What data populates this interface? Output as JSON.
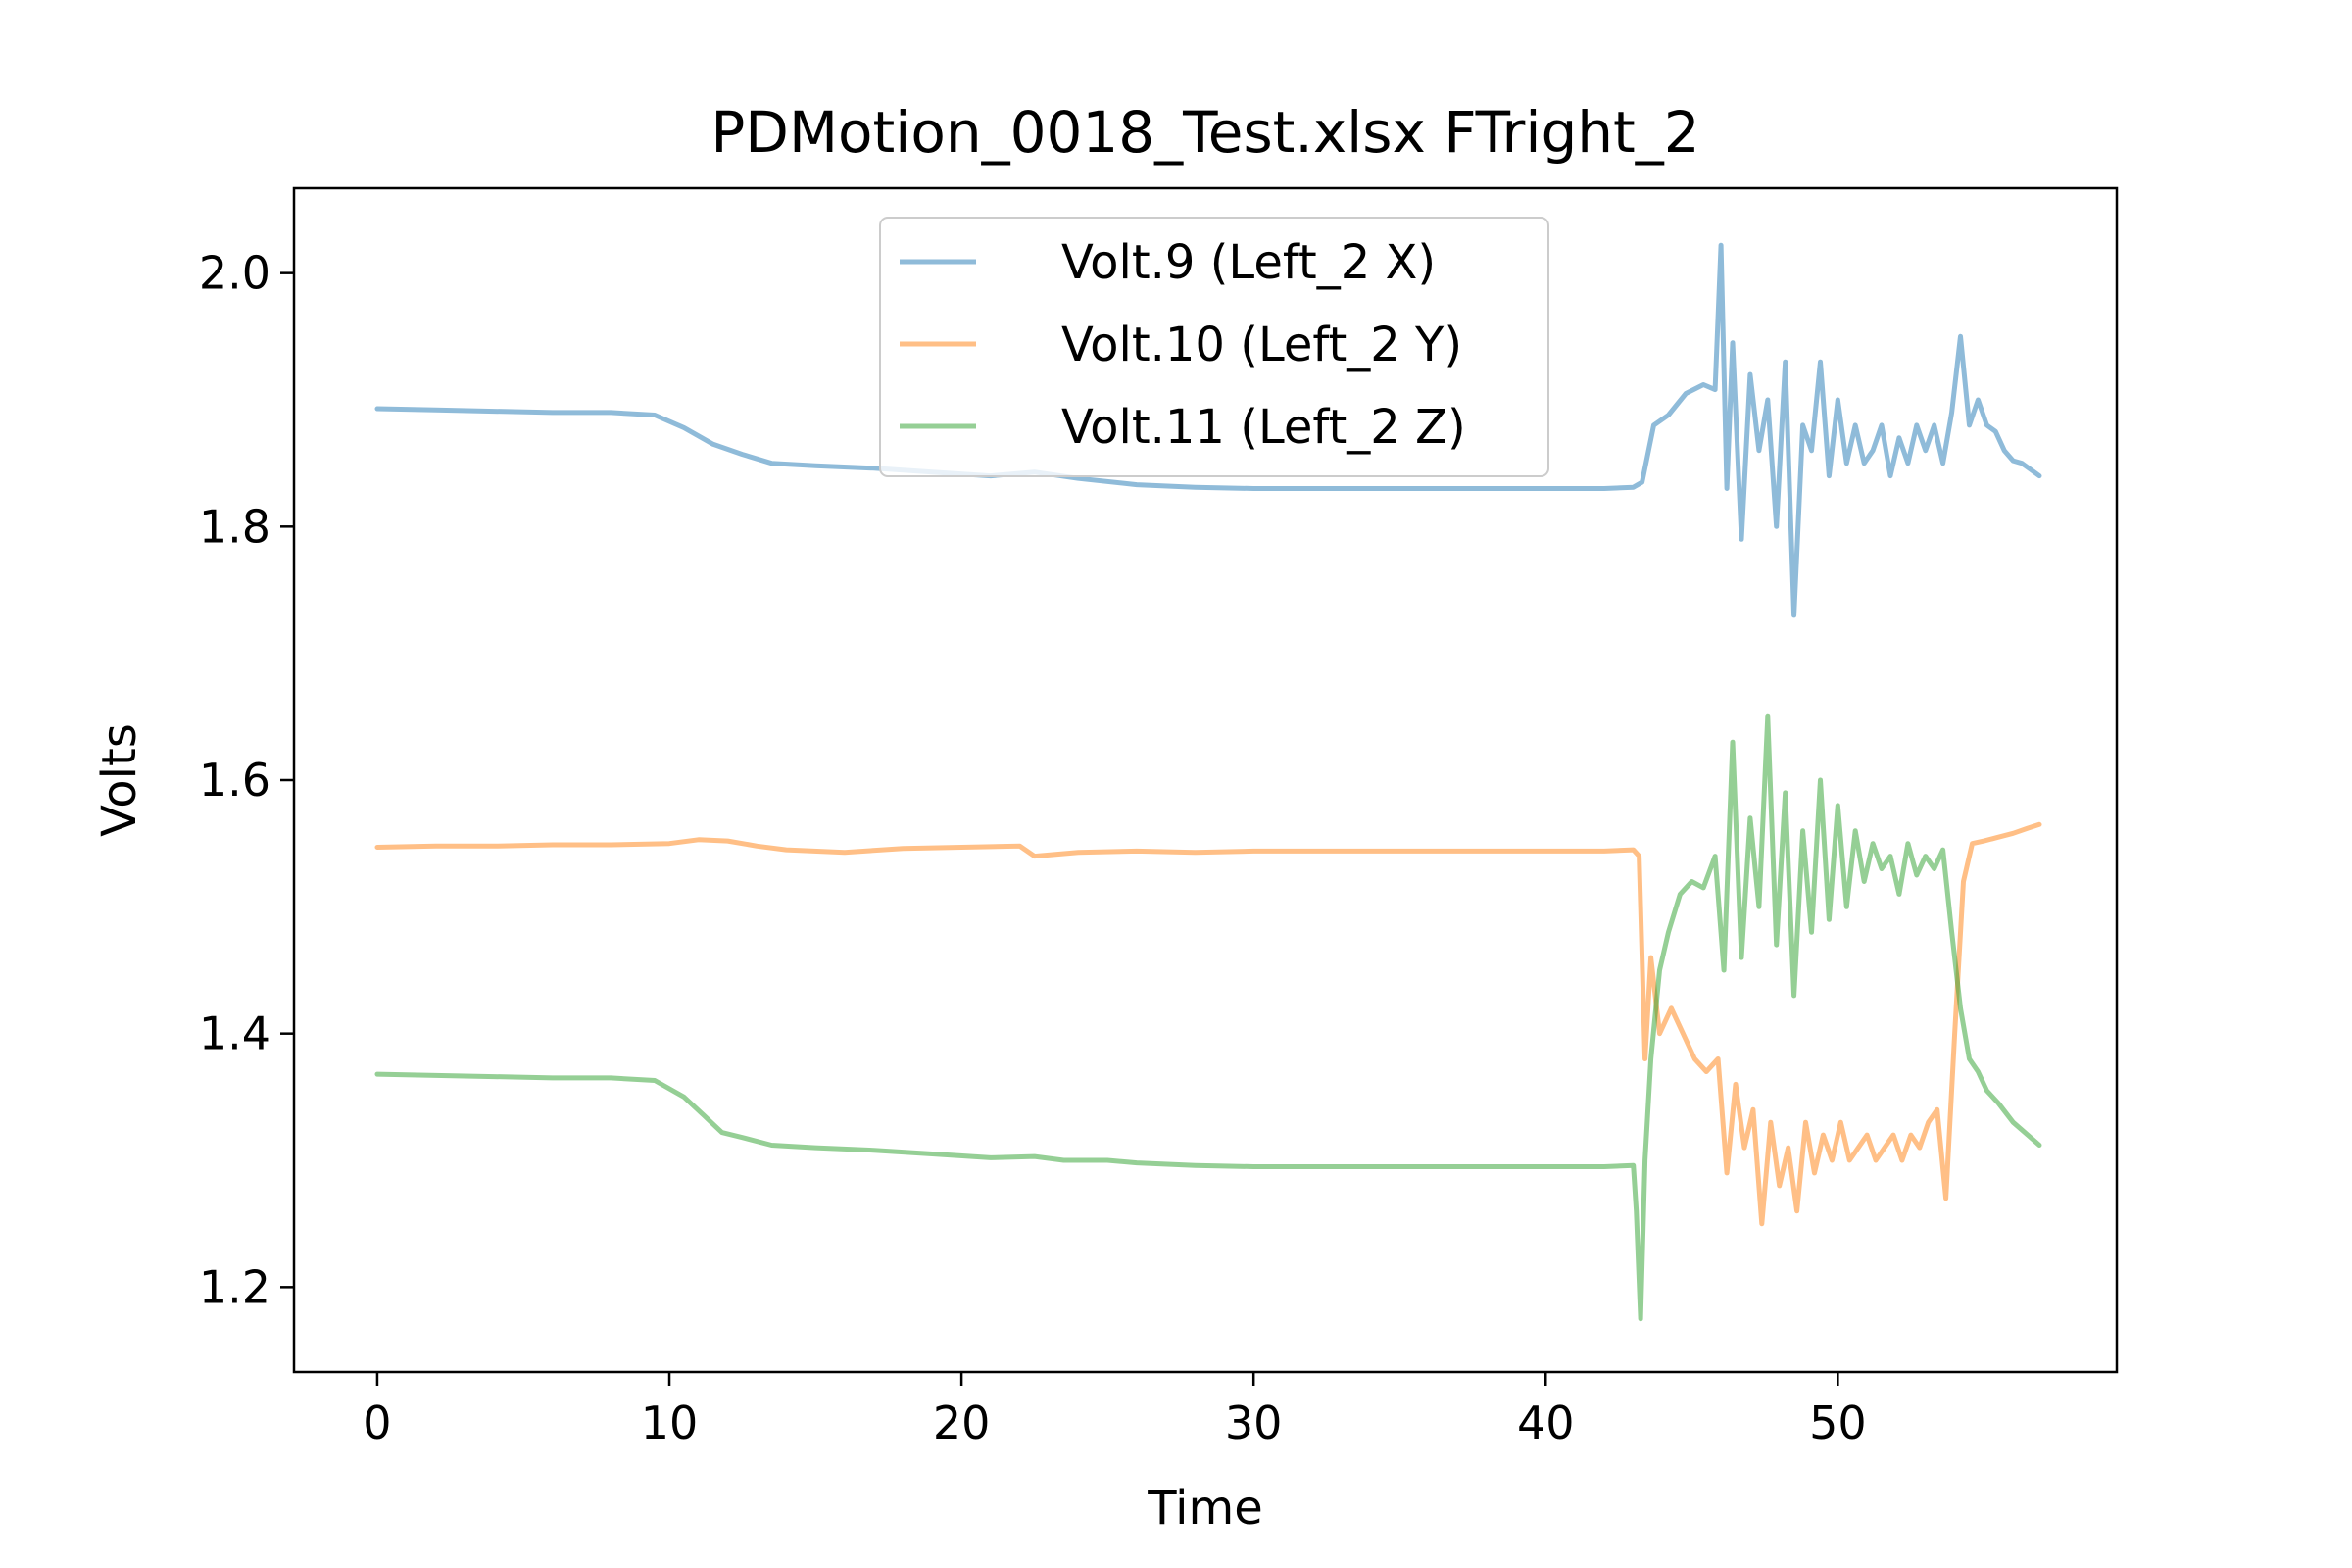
{
  "chart_data": {
    "type": "line",
    "title": "PDMotion_0018_Test.xlsx FTright_2",
    "xlabel": "Time",
    "ylabel": "Volts",
    "xlim": [
      -2.85,
      59.55
    ],
    "ylim": [
      1.133,
      2.067
    ],
    "xticks": [
      0,
      10,
      20,
      30,
      40,
      50
    ],
    "yticks": [
      1.2,
      1.4,
      1.6,
      1.8,
      2.0
    ],
    "xtick_labels": [
      "0",
      "10",
      "20",
      "30",
      "40",
      "50"
    ],
    "ytick_labels": [
      "1.2",
      "1.4",
      "1.6",
      "1.8",
      "2.0"
    ],
    "grid": false,
    "legend_position": "upper center",
    "series": [
      {
        "name": "Volt.9 (Left_2 X)",
        "color": "#1f77b4",
        "x": [
          0,
          2,
          4,
          6,
          8,
          9.5,
          10.5,
          11.5,
          12.5,
          13.5,
          15,
          17,
          19,
          21,
          22.5,
          24,
          26,
          28,
          30,
          32,
          34,
          36,
          38,
          40,
          42,
          43,
          43.3,
          43.7,
          44.2,
          44.8,
          45.4,
          45.8,
          46.0,
          46.2,
          46.4,
          46.7,
          47.0,
          47.3,
          47.6,
          47.9,
          48.2,
          48.5,
          48.8,
          49.1,
          49.4,
          49.7,
          50.0,
          50.3,
          50.6,
          50.9,
          51.2,
          51.5,
          51.8,
          52.1,
          52.4,
          52.7,
          53.0,
          53.3,
          53.6,
          53.9,
          54.2,
          54.5,
          54.8,
          55.1,
          55.4,
          55.7,
          56.0,
          56.3,
          56.6,
          56.9
        ],
        "y": [
          1.893,
          1.892,
          1.891,
          1.89,
          1.89,
          1.888,
          1.878,
          1.865,
          1.857,
          1.85,
          1.848,
          1.846,
          1.843,
          1.84,
          1.843,
          1.838,
          1.833,
          1.831,
          1.83,
          1.83,
          1.83,
          1.83,
          1.83,
          1.83,
          1.83,
          1.831,
          1.835,
          1.88,
          1.888,
          1.905,
          1.912,
          1.908,
          2.022,
          1.83,
          1.945,
          1.79,
          1.92,
          1.86,
          1.9,
          1.8,
          1.93,
          1.73,
          1.88,
          1.86,
          1.93,
          1.84,
          1.9,
          1.85,
          1.88,
          1.85,
          1.86,
          1.88,
          1.84,
          1.87,
          1.85,
          1.88,
          1.86,
          1.88,
          1.85,
          1.89,
          1.95,
          1.88,
          1.9,
          1.88,
          1.875,
          1.86,
          1.852,
          1.85,
          1.845,
          1.84
        ]
      },
      {
        "name": "Volt.10 (Left_2 Y)",
        "color": "#ff7f0e",
        "x": [
          0,
          2,
          4,
          6,
          8,
          10,
          11,
          12,
          13,
          14,
          16,
          18,
          20,
          22,
          22.5,
          24,
          26,
          28,
          30,
          32,
          34,
          36,
          38,
          40,
          42,
          43,
          43.2,
          43.4,
          43.6,
          43.9,
          44.3,
          44.7,
          45.1,
          45.5,
          45.9,
          46.2,
          46.5,
          46.8,
          47.1,
          47.4,
          47.7,
          48.0,
          48.3,
          48.6,
          48.9,
          49.2,
          49.5,
          49.8,
          50.1,
          50.4,
          50.7,
          51.0,
          51.3,
          51.6,
          51.9,
          52.2,
          52.5,
          52.8,
          53.1,
          53.4,
          53.7,
          54.0,
          54.3,
          54.6,
          55.0,
          55.5,
          56.0,
          56.5,
          56.9
        ],
        "y": [
          1.547,
          1.548,
          1.548,
          1.549,
          1.549,
          1.55,
          1.553,
          1.552,
          1.548,
          1.545,
          1.543,
          1.546,
          1.547,
          1.548,
          1.54,
          1.543,
          1.544,
          1.543,
          1.544,
          1.544,
          1.544,
          1.544,
          1.544,
          1.544,
          1.544,
          1.545,
          1.54,
          1.38,
          1.46,
          1.4,
          1.42,
          1.4,
          1.38,
          1.37,
          1.38,
          1.29,
          1.36,
          1.31,
          1.34,
          1.25,
          1.33,
          1.28,
          1.31,
          1.26,
          1.33,
          1.29,
          1.32,
          1.3,
          1.33,
          1.3,
          1.31,
          1.32,
          1.3,
          1.31,
          1.32,
          1.3,
          1.32,
          1.31,
          1.33,
          1.34,
          1.27,
          1.4,
          1.52,
          1.55,
          1.552,
          1.555,
          1.558,
          1.562,
          1.565
        ]
      },
      {
        "name": "Volt.11 (Left_2 Z)",
        "color": "#2ca02c",
        "x": [
          0,
          2,
          4,
          6,
          8,
          9.5,
          10.5,
          11.2,
          11.8,
          12.5,
          13.5,
          15,
          17,
          19,
          21,
          22.5,
          23.5,
          25,
          26,
          28,
          30,
          32,
          34,
          36,
          38,
          40,
          42,
          43,
          43.1,
          43.25,
          43.4,
          43.6,
          43.9,
          44.2,
          44.6,
          45.0,
          45.4,
          45.8,
          46.1,
          46.4,
          46.7,
          47.0,
          47.3,
          47.6,
          47.9,
          48.2,
          48.5,
          48.8,
          49.1,
          49.4,
          49.7,
          50.0,
          50.3,
          50.6,
          50.9,
          51.2,
          51.5,
          51.8,
          52.1,
          52.4,
          52.7,
          53.0,
          53.3,
          53.6,
          53.9,
          54.2,
          54.5,
          54.8,
          55.1,
          55.5,
          56.0,
          56.5,
          56.9
        ],
        "y": [
          1.368,
          1.367,
          1.366,
          1.365,
          1.365,
          1.363,
          1.35,
          1.335,
          1.322,
          1.318,
          1.312,
          1.31,
          1.308,
          1.305,
          1.302,
          1.303,
          1.3,
          1.3,
          1.298,
          1.296,
          1.295,
          1.295,
          1.295,
          1.295,
          1.295,
          1.295,
          1.295,
          1.296,
          1.26,
          1.175,
          1.3,
          1.38,
          1.45,
          1.48,
          1.51,
          1.52,
          1.515,
          1.54,
          1.45,
          1.63,
          1.46,
          1.57,
          1.5,
          1.65,
          1.47,
          1.59,
          1.43,
          1.56,
          1.48,
          1.6,
          1.49,
          1.58,
          1.5,
          1.56,
          1.52,
          1.55,
          1.53,
          1.54,
          1.51,
          1.55,
          1.525,
          1.54,
          1.53,
          1.545,
          1.48,
          1.42,
          1.38,
          1.37,
          1.355,
          1.345,
          1.33,
          1.32,
          1.312
        ]
      }
    ]
  }
}
